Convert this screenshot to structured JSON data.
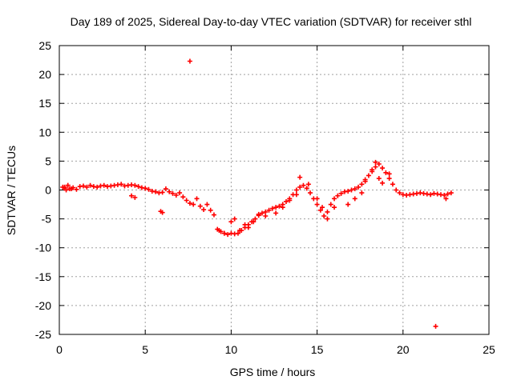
{
  "chart_data": {
    "type": "scatter",
    "title": "Day 189 of 2025, Sidereal Day-to-day VTEC variation (SDTVAR) for receiver sthl",
    "xlabel": "GPS time / hours",
    "ylabel": "SDTVAR / TECUs",
    "xlim": [
      0,
      25
    ],
    "ylim": [
      -25,
      25
    ],
    "xticks": [
      0,
      5,
      10,
      15,
      20,
      25
    ],
    "yticks": [
      25,
      20,
      15,
      10,
      5,
      0,
      -5,
      -10,
      -15,
      -20,
      -25
    ],
    "grid": true,
    "marker": "plus",
    "color": "#ff0000",
    "series": [
      {
        "name": "sthl",
        "x": [
          0.2,
          0.3,
          0.4,
          0.5,
          0.6,
          0.8,
          1.0,
          1.2,
          1.4,
          1.6,
          1.8,
          2.0,
          2.2,
          2.4,
          2.6,
          2.8,
          3.0,
          3.2,
          3.4,
          3.6,
          3.8,
          4.0,
          4.2,
          4.4,
          4.6,
          4.8,
          5.0,
          5.2,
          5.4,
          5.6,
          5.8,
          6.0,
          6.2,
          6.4,
          6.6,
          6.8,
          7.0,
          7.2,
          7.4,
          7.6,
          7.8,
          8.0,
          8.2,
          8.4,
          8.6,
          8.8,
          9.0,
          9.2,
          9.4,
          9.6,
          9.8,
          10.0,
          10.2,
          10.4,
          10.6,
          10.8,
          11.0,
          11.2,
          11.4,
          11.6,
          11.8,
          12.0,
          12.2,
          12.4,
          12.6,
          12.8,
          13.0,
          13.2,
          13.4,
          13.6,
          13.8,
          14.0,
          14.2,
          14.4,
          14.6,
          14.8,
          15.0,
          15.2,
          15.4,
          15.6,
          15.8,
          16.0,
          16.2,
          16.4,
          16.6,
          16.8,
          17.0,
          17.2,
          17.4,
          17.6,
          17.8,
          18.0,
          18.2,
          18.4,
          18.6,
          18.8,
          19.0,
          19.2,
          19.4,
          19.6,
          19.8,
          20.0,
          20.2,
          20.4,
          20.6,
          20.8,
          21.0,
          21.2,
          21.4,
          21.6,
          21.8,
          22.0,
          22.2,
          22.4,
          22.6,
          22.8,
          0.3,
          0.5,
          0.7,
          4.2,
          4.4,
          5.9,
          6.0,
          7.6,
          9.3,
          9.6,
          10.0,
          10.2,
          10.5,
          10.8,
          11.0,
          11.3,
          11.6,
          12.0,
          12.6,
          13.0,
          13.4,
          13.8,
          14.0,
          14.5,
          15.0,
          15.3,
          15.6,
          16.0,
          16.8,
          17.2,
          17.6,
          17.8,
          18.2,
          18.4,
          18.6,
          18.8,
          19.2,
          21.9,
          22.5
        ],
        "y": [
          0.5,
          0.3,
          0.0,
          0.8,
          0.2,
          0.4,
          0.1,
          0.6,
          0.7,
          0.5,
          0.8,
          0.6,
          0.5,
          0.7,
          0.8,
          0.6,
          0.7,
          0.8,
          0.9,
          1.0,
          0.7,
          0.8,
          0.9,
          0.8,
          0.6,
          0.4,
          0.3,
          0.1,
          -0.2,
          -0.3,
          -0.5,
          -0.4,
          0.2,
          -0.3,
          -0.6,
          -0.9,
          -0.5,
          -1.2,
          -1.8,
          -2.3,
          -2.5,
          -1.5,
          -2.8,
          -3.4,
          -2.5,
          -3.5,
          -4.3,
          -6.8,
          -7.2,
          -7.5,
          -7.7,
          -7.5,
          -7.6,
          -7.5,
          -7.0,
          -6.5,
          -6.0,
          -5.5,
          -5.0,
          -4.4,
          -4.0,
          -3.8,
          -3.5,
          -3.2,
          -3.0,
          -2.8,
          -2.5,
          -2.0,
          -1.5,
          -0.8,
          0.0,
          0.5,
          0.8,
          0.3,
          -0.5,
          -1.5,
          -2.5,
          -3.5,
          -4.5,
          -3.8,
          -2.5,
          -1.5,
          -1.0,
          -0.6,
          -0.3,
          -0.2,
          0.0,
          0.2,
          0.5,
          1.0,
          1.8,
          2.5,
          3.2,
          4.0,
          4.5,
          3.8,
          3.0,
          2.0,
          1.0,
          0.0,
          -0.5,
          -0.8,
          -0.9,
          -0.8,
          -0.7,
          -0.6,
          -0.5,
          -0.6,
          -0.7,
          -0.8,
          -0.6,
          -0.7,
          -0.8,
          -0.9,
          -0.7,
          -0.5,
          0.5,
          0.8,
          0.2,
          -1.0,
          -1.3,
          -3.7,
          -3.9,
          22.3,
          -7.0,
          -7.5,
          -5.5,
          -5.0,
          -7.0,
          -6.0,
          -6.5,
          -5.5,
          -4.2,
          -4.5,
          -4.0,
          -3.0,
          -1.8,
          -0.8,
          2.2,
          1.0,
          -1.5,
          -3.0,
          -5.0,
          -3.0,
          -2.5,
          -1.5,
          -0.5,
          1.5,
          3.5,
          4.8,
          2.0,
          1.2,
          2.8,
          -23.6,
          -1.5
        ]
      }
    ]
  }
}
